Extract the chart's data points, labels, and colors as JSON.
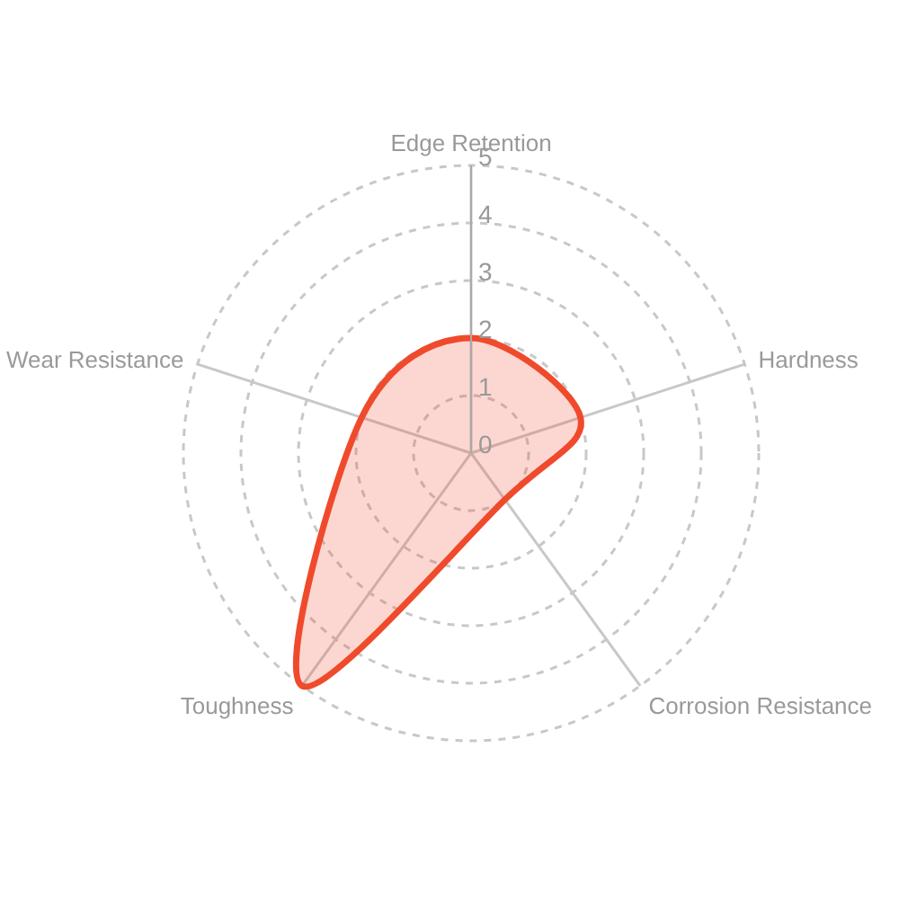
{
  "chart_data": {
    "type": "radar",
    "categories": [
      "Edge Retention",
      "Hardness",
      "Corrosion Resistance",
      "Toughness",
      "Wear Resistance"
    ],
    "series": [
      {
        "color": "#f04a2c",
        "values": [
          2,
          2,
          1,
          5,
          2
        ]
      }
    ],
    "ylim": [
      0,
      5
    ],
    "yticks": [
      0,
      1,
      2,
      3,
      4,
      5
    ],
    "grid": true,
    "marker": "none"
  }
}
